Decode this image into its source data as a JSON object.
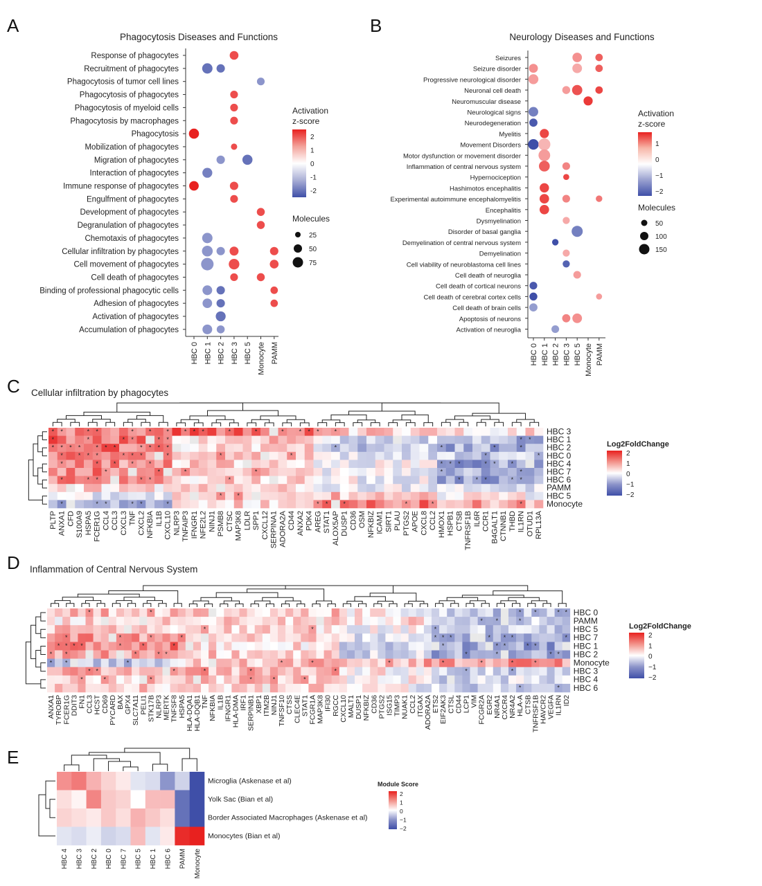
{
  "colors": {
    "high": "#e8211f",
    "mid": "#ffffff",
    "low": "#3f4fa8",
    "na": "#e9e9e9"
  },
  "panels": {
    "A": {
      "letter": "A",
      "title": "Phagocytosis Diseases and Functions",
      "legend": {
        "color_title_1": "Activation",
        "color_title_2": "z-score",
        "color_ticks": [
          "2",
          "1",
          "0",
          "-1",
          "-2"
        ],
        "size_title": "Molecules",
        "size_ticks": [
          "25",
          "50",
          "75"
        ]
      }
    },
    "B": {
      "letter": "B",
      "title": "Neurology Diseases and Functions",
      "legend": {
        "color_title_1": "Activation",
        "color_title_2": "z-score",
        "color_ticks": [
          "1",
          "0",
          "−1",
          "−2"
        ],
        "size_title": "Molecules",
        "size_ticks": [
          "50",
          "100",
          "150"
        ]
      }
    },
    "C": {
      "letter": "C",
      "title": "Cellular infiltration by phagocytes",
      "legend": {
        "title": "Log2FoldChange",
        "ticks": [
          "2",
          "1",
          "0",
          "−1",
          "−2"
        ]
      }
    },
    "D": {
      "letter": "D",
      "title": "Inflammation of Central Nervous System",
      "legend": {
        "title": "Log2FoldChange",
        "ticks": [
          "2",
          "1",
          "0",
          "−1",
          "−2"
        ]
      }
    },
    "E": {
      "letter": "E",
      "legend": {
        "title": "Module Score",
        "ticks": [
          "2",
          "1",
          "0",
          "−1",
          "−2"
        ]
      }
    }
  },
  "chart_data": [
    {
      "panel": "A",
      "type": "scatter",
      "title": "Phagocytosis Diseases and Functions",
      "x_categories": [
        "HBC 0",
        "HBC 1",
        "HBC 2",
        "HBC 3",
        "HBC 5",
        "Monocyte",
        "PAMM"
      ],
      "y_categories": [
        "Response of phagocytes",
        "Recruitment of phagocytes",
        "Phagocytosis of tumor cell lines",
        "Phagocytosis of phagocytes",
        "Phagocytosis of myeloid cells",
        "Phagocytosis by macrophages",
        "Phagocytosis",
        "Mobilization of phagocytes",
        "Migration of phagocytes",
        "Interaction of phagocytes",
        "Immune response of phagocytes",
        "Engulfment of phagocytes",
        "Development of phagocytes",
        "Degranulation of phagocytes",
        "Chemotaxis of phagocytes",
        "Cellular infiltration by phagocytes",
        "Cell movement of phagocytes",
        "Cell death of phagocytes",
        "Binding of professional phagocytic cells",
        "Adhesion of phagocytes",
        "Activation of phagocytes",
        "Accumulation of phagocytes"
      ],
      "zlim": [
        -2.5,
        2.5
      ],
      "size_range": [
        25,
        75
      ],
      "points": [
        [
          3,
          0,
          2.0,
          28
        ],
        [
          1,
          1,
          -2.0,
          45
        ],
        [
          2,
          1,
          -2.0,
          25
        ],
        [
          5,
          2,
          -1.5,
          20
        ],
        [
          3,
          3,
          2.0,
          20
        ],
        [
          3,
          4,
          2.0,
          20
        ],
        [
          3,
          5,
          2.0,
          20
        ],
        [
          0,
          6,
          2.5,
          42
        ],
        [
          3,
          7,
          2.0,
          12
        ],
        [
          2,
          8,
          -1.5,
          25
        ],
        [
          4,
          8,
          -2.0,
          42
        ],
        [
          1,
          9,
          -1.8,
          40
        ],
        [
          0,
          10,
          2.5,
          36
        ],
        [
          3,
          10,
          2.0,
          25
        ],
        [
          3,
          11,
          2.0,
          20
        ],
        [
          5,
          12,
          2.0,
          22
        ],
        [
          5,
          13,
          2.0,
          22
        ],
        [
          1,
          14,
          -1.5,
          45
        ],
        [
          1,
          15,
          -1.5,
          50
        ],
        [
          2,
          15,
          -1.5,
          25
        ],
        [
          3,
          15,
          2.0,
          30
        ],
        [
          6,
          15,
          2.0,
          25
        ],
        [
          1,
          16,
          -1.5,
          75
        ],
        [
          3,
          16,
          2.0,
          48
        ],
        [
          6,
          16,
          2.0,
          28
        ],
        [
          3,
          17,
          2.0,
          20
        ],
        [
          5,
          17,
          2.0,
          22
        ],
        [
          1,
          18,
          -1.5,
          38
        ],
        [
          2,
          18,
          -2.0,
          25
        ],
        [
          6,
          18,
          2.0,
          18
        ],
        [
          1,
          19,
          -1.5,
          36
        ],
        [
          2,
          19,
          -2.0,
          25
        ],
        [
          6,
          19,
          2.0,
          18
        ],
        [
          2,
          20,
          -2.0,
          40
        ],
        [
          1,
          21,
          -1.5,
          38
        ],
        [
          2,
          21,
          -1.5,
          22
        ]
      ]
    },
    {
      "panel": "B",
      "type": "scatter",
      "title": "Neurology Diseases and Functions",
      "x_categories": [
        "HBC 0",
        "HBC 1",
        "HBC 2",
        "HBC 3",
        "HBC 5",
        "Monocyte",
        "PAMM"
      ],
      "y_categories": [
        "Seizures",
        "Seizure disorder",
        "Progressive neurological disorder",
        "Neuronal cell death",
        "Neuromuscular disease",
        "Neurological signs",
        "Neurodegeneration",
        "Myelitis",
        "Movement Disorders",
        "Motor dysfunction or movement disorder",
        "Inflammation of central nervous system",
        "Hypernociception",
        "Hashimotos encephalitis",
        "Experimental autoimmune encephalomyelitis",
        "Encephalitis",
        "Dysmyelination",
        "Disorder of basal ganglia",
        "Demyelination of central nervous system",
        "Demyelination",
        "Cell viability of neuroblastoma cell lines",
        "Cell death of neuroglia",
        "Cell death of cortical neurons",
        "Cell death of cerebral cortex cells",
        "Cell death of brain cells",
        "Apoptosis of neurons",
        "Activation of neuroglia"
      ],
      "zlim": [
        -2.2,
        1.8
      ],
      "size_range": [
        50,
        150
      ],
      "points": [
        [
          4,
          0,
          0.9,
          95
        ],
        [
          6,
          0,
          1.3,
          45
        ],
        [
          0,
          1,
          0.9,
          80
        ],
        [
          4,
          1,
          0.7,
          100
        ],
        [
          6,
          1,
          1.3,
          45
        ],
        [
          0,
          2,
          0.8,
          110
        ],
        [
          3,
          3,
          0.8,
          55
        ],
        [
          4,
          3,
          1.4,
          120
        ],
        [
          6,
          3,
          1.5,
          45
        ],
        [
          5,
          4,
          1.6,
          85
        ],
        [
          0,
          5,
          -1.3,
          100
        ],
        [
          0,
          6,
          -1.7,
          60
        ],
        [
          1,
          7,
          1.5,
          85
        ],
        [
          0,
          8,
          -2.0,
          130
        ],
        [
          1,
          8,
          0.6,
          190
        ],
        [
          1,
          9,
          0.8,
          175
        ],
        [
          1,
          10,
          1.3,
          140
        ],
        [
          3,
          10,
          1.0,
          50
        ],
        [
          3,
          11,
          1.5,
          25
        ],
        [
          1,
          12,
          1.5,
          90
        ],
        [
          1,
          13,
          1.5,
          95
        ],
        [
          3,
          13,
          1.0,
          50
        ],
        [
          6,
          13,
          1.1,
          30
        ],
        [
          1,
          14,
          1.5,
          95
        ],
        [
          3,
          15,
          0.7,
          40
        ],
        [
          4,
          16,
          -1.3,
          150
        ],
        [
          2,
          17,
          -1.9,
          30
        ],
        [
          3,
          18,
          0.7,
          40
        ],
        [
          3,
          19,
          -1.6,
          40
        ],
        [
          4,
          20,
          0.8,
          50
        ],
        [
          0,
          21,
          -1.7,
          50
        ],
        [
          0,
          22,
          -1.8,
          55
        ],
        [
          6,
          22,
          0.8,
          25
        ],
        [
          0,
          23,
          -1.0,
          60
        ],
        [
          3,
          24,
          1.0,
          60
        ],
        [
          4,
          24,
          0.9,
          100
        ],
        [
          2,
          25,
          -1.0,
          50
        ]
      ]
    },
    {
      "panel": "C",
      "type": "heatmap",
      "title": "Cellular infiltration by phagocytes",
      "columns": [
        "PLTP",
        "ANXA1",
        "CFD",
        "S100A9",
        "HSPA5",
        "FCER1G",
        "CCL4",
        "CCL3",
        "CXCL3",
        "TNF",
        "CXCL2",
        "NFKBIA",
        "IL1B",
        "CXCL10",
        "NLRP3",
        "TNFAIP3",
        "IFNGR1",
        "NFE2L2",
        "NINJ1",
        "PSMB8",
        "CTSC",
        "MAP3K8",
        "LDLR",
        "SPP1",
        "CXCL12",
        "SERPINA1",
        "ADORA2A",
        "CD44",
        "ANXA2",
        "PDK4",
        "AREG",
        "STAT1",
        "ALOX5AP",
        "DUSP1",
        "CD36",
        "OSM",
        "NFKBIZ",
        "ICAM1",
        "SIRT1",
        "PLAU",
        "PTGS2",
        "APOE",
        "CXCL8",
        "CCL2",
        "HMOX1",
        "HSPB1",
        "CTSB",
        "TNFRSF1B",
        "IL6R",
        "CCR1",
        "B4GALT1",
        "CTNNB1",
        "THBD",
        "IL1RN",
        "OTUD1",
        "RPL13A"
      ],
      "rows": [
        "HBC 3",
        "HBC 1",
        "HBC 2",
        "HBC 0",
        "HBC 4",
        "HBC 7",
        "HBC 6",
        "PAMM",
        "HBC 5",
        "Monocyte"
      ],
      "zlim": [
        -2,
        2
      ],
      "cluster_groups": [
        0,
        0,
        0,
        0,
        0,
        0,
        0,
        0,
        0,
        0,
        0,
        0,
        0,
        0,
        1,
        1,
        1,
        1,
        1,
        1,
        1,
        1,
        1,
        1,
        1,
        1,
        1,
        1,
        1,
        1,
        2,
        2,
        2,
        2,
        2,
        2,
        2,
        2,
        2,
        2,
        2,
        2,
        2,
        2,
        3,
        3,
        3,
        3,
        3,
        3,
        3,
        3,
        3,
        3,
        3,
        3
      ],
      "row_profiles": {
        "HBC 3": [
          1.2,
          1.4,
          0.4,
          0.2,
          1.4
        ],
        "HBC 1": [
          1.3,
          0.5,
          -0.4,
          -0.8,
          1.2
        ],
        "HBC 2": [
          1.2,
          0.4,
          -0.6,
          -0.9,
          1.0
        ],
        "HBC 0": [
          1.1,
          0.6,
          -0.2,
          -0.6,
          0.9
        ],
        "HBC 4": [
          1.0,
          0.5,
          -0.1,
          -1.0,
          0.5
        ],
        "HBC 7": [
          1.1,
          0.6,
          -0.1,
          -0.9,
          0.5
        ],
        "HBC 6": [
          1.0,
          0.4,
          -0.1,
          -1.0,
          0.3
        ],
        "PAMM": [
          0.3,
          0.5,
          -0.2,
          -0.3,
          0.1
        ],
        "HBC 5": [
          -0.2,
          0.7,
          0.6,
          0.0,
          0.6
        ],
        "Monocyte": [
          -0.8,
          0.3,
          1.2,
          0.8,
          0.2
        ]
      }
    },
    {
      "panel": "D",
      "type": "heatmap",
      "title": "Inflammation of Central Nervous System",
      "columns": [
        "ANXA1",
        "TYROBP",
        "FCER1G",
        "DDIT3",
        "FN1",
        "CCL3",
        "HCST",
        "CD69",
        "PYCARD",
        "BAX",
        "GPX4",
        "SLC7A11",
        "PELI1",
        "STK17B",
        "NLRP3",
        "MERTK",
        "TNFSF8",
        "HSPA5",
        "HLA-DQA1",
        "HLA-DQB1",
        "TNF",
        "NFKBIA",
        "IL1B",
        "IFNGR1",
        "HLA-DMA",
        "IRF1",
        "SERPINB1",
        "XBP1",
        "ITM2B",
        "NINJ1",
        "TNFSF10",
        "CTSS",
        "CLEC4E",
        "STAT1",
        "FCGR1A",
        "MAP3K8",
        "IFI30",
        "RGCC",
        "CXCL10",
        "MALT1",
        "DUSP1",
        "NFKBIZ",
        "CD36",
        "PTGS2",
        "ISG15",
        "TIMP3",
        "NUAK1",
        "CCL2",
        "ITGAX",
        "ADORA2A",
        "ETS2",
        "EIF2AK3",
        "CTSL",
        "CD44",
        "LCP1",
        "VIM",
        "FCGR2A",
        "EGR2",
        "NR4A1",
        "CXCR4",
        "NR4A2",
        "HLA-A",
        "CTSB",
        "TNFRSF1B",
        "HAVCR2",
        "VEGFA",
        "IL1RN",
        "ID2"
      ],
      "rows": [
        "HBC 0",
        "PAMM",
        "HBC 5",
        "HBC 7",
        "HBC 1",
        "HBC 2",
        "Monocyte",
        "HBC 3",
        "HBC 4",
        "HBC 6"
      ],
      "zlim": [
        -2,
        2
      ],
      "cluster_groups": [
        0,
        0,
        0,
        0,
        0,
        0,
        0,
        0,
        0,
        0,
        0,
        0,
        0,
        0,
        0,
        0,
        0,
        0,
        1,
        1,
        1,
        1,
        1,
        1,
        1,
        1,
        1,
        1,
        1,
        1,
        1,
        1,
        1,
        1,
        1,
        1,
        1,
        1,
        2,
        2,
        2,
        2,
        2,
        2,
        2,
        2,
        2,
        2,
        2,
        2,
        3,
        3,
        3,
        3,
        3,
        3,
        3,
        3,
        3,
        3,
        3,
        3,
        3,
        3,
        3,
        3,
        3,
        3
      ],
      "row_profiles": {
        "HBC 0": [
          0.6,
          0.5,
          0.1,
          -0.6
        ],
        "PAMM": [
          0.3,
          0.4,
          0.3,
          -0.5
        ],
        "HBC 5": [
          0.5,
          0.4,
          0.0,
          -0.6
        ],
        "HBC 7": [
          0.9,
          0.5,
          -0.3,
          -0.8
        ],
        "HBC 1": [
          1.1,
          0.3,
          -0.6,
          -1.0
        ],
        "HBC 2": [
          0.9,
          0.4,
          -0.4,
          -0.9
        ],
        "Monocyte": [
          -0.6,
          0.6,
          0.7,
          0.9
        ],
        "HBC 3": [
          0.7,
          0.7,
          0.1,
          -0.5
        ],
        "HBC 4": [
          0.5,
          0.5,
          0.0,
          -0.4
        ],
        "HBC 6": [
          0.4,
          0.4,
          -0.1,
          -0.5
        ]
      }
    },
    {
      "panel": "E",
      "type": "heatmap",
      "columns": [
        "HBC 4",
        "HBC 3",
        "HBC 2",
        "HBC 0",
        "HBC 7",
        "HBC 5",
        "HBC 1",
        "HBC 6",
        "PAMM",
        "Monocyte"
      ],
      "rows": [
        "Microglia (Askenase et al)",
        "Yolk Sac (Bian et al)",
        "Border Associated Macrophages (Askenase et al)",
        "Monocytes (Bian et al)"
      ],
      "zlim": [
        -2,
        2
      ],
      "values": [
        [
          1.0,
          1.2,
          0.7,
          0.4,
          0.2,
          -0.3,
          -0.4,
          -1.2,
          -0.5,
          -2.0
        ],
        [
          0.3,
          0.1,
          1.1,
          0.5,
          0.4,
          0.0,
          0.6,
          0.6,
          -1.6,
          -2.0
        ],
        [
          0.4,
          0.3,
          0.2,
          0.5,
          0.3,
          0.7,
          0.5,
          0.3,
          -1.6,
          -2.0
        ],
        [
          -0.3,
          -0.4,
          -0.2,
          -0.5,
          -0.4,
          0.6,
          -0.3,
          0.2,
          1.9,
          2.0
        ]
      ]
    }
  ]
}
